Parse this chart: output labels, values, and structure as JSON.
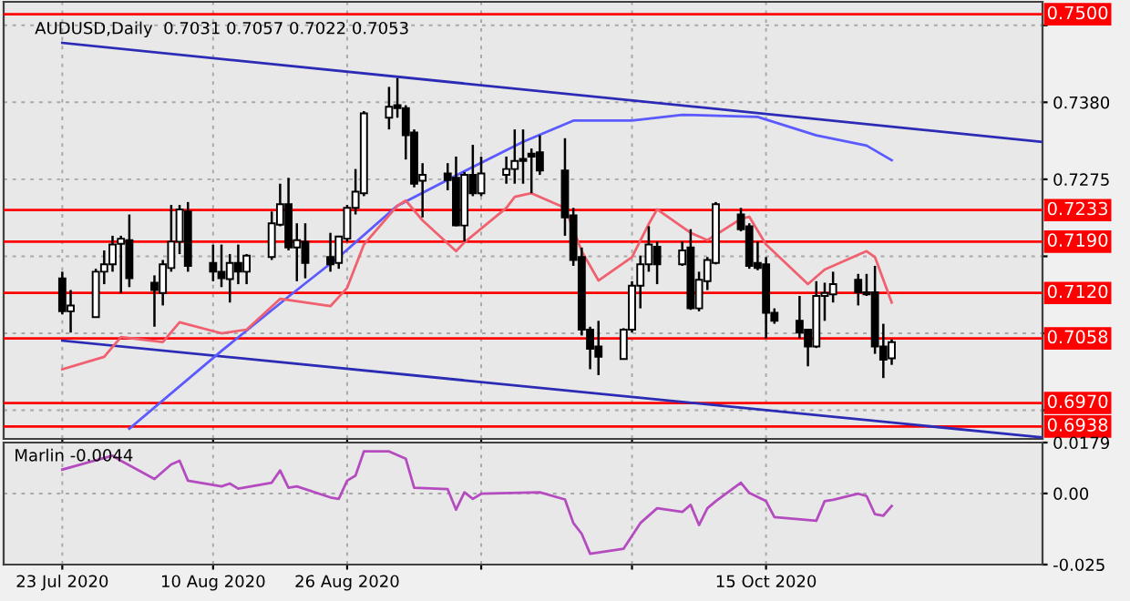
{
  "chart_data": [
    {
      "type": "candlestick",
      "title": "AUDUSD,Daily  0.7031 0.7057 0.7022 0.7053",
      "x": [
        "2020-07-23",
        "2020-07-24",
        "2020-07-27",
        "2020-07-28",
        "2020-07-29",
        "2020-07-30",
        "2020-07-31",
        "2020-08-03",
        "2020-08-04",
        "2020-08-05",
        "2020-08-06",
        "2020-08-07",
        "2020-08-10",
        "2020-08-11",
        "2020-08-12",
        "2020-08-13",
        "2020-08-14",
        "2020-08-17",
        "2020-08-18",
        "2020-08-19",
        "2020-08-20",
        "2020-08-21",
        "2020-08-24",
        "2020-08-25",
        "2020-08-26",
        "2020-08-27",
        "2020-08-28",
        "2020-08-31",
        "2020-09-01",
        "2020-09-02",
        "2020-09-03",
        "2020-09-04",
        "2020-09-07",
        "2020-09-08",
        "2020-09-09",
        "2020-09-10",
        "2020-09-11",
        "2020-09-14",
        "2020-09-15",
        "2020-09-16",
        "2020-09-17",
        "2020-09-18",
        "2020-09-21",
        "2020-09-22",
        "2020-09-23",
        "2020-09-24",
        "2020-09-25",
        "2020-09-28",
        "2020-09-29",
        "2020-09-30",
        "2020-10-01",
        "2020-10-02",
        "2020-10-05",
        "2020-10-06",
        "2020-10-07",
        "2020-10-08",
        "2020-10-09",
        "2020-10-12",
        "2020-10-13",
        "2020-10-14",
        "2020-10-15",
        "2020-10-16",
        "2020-10-19",
        "2020-10-20",
        "2020-10-21",
        "2020-10-22",
        "2020-10-23",
        "2020-10-26",
        "2020-10-27",
        "2020-10-28",
        "2020-10-29",
        "2020-10-30"
      ],
      "ohlc": [
        [
          0.714,
          0.7149,
          0.7091,
          0.7095
        ],
        [
          0.7095,
          0.7124,
          0.7066,
          0.7103
        ],
        [
          0.7087,
          0.7153,
          0.7087,
          0.7149
        ],
        [
          0.7149,
          0.7178,
          0.7132,
          0.7159
        ],
        [
          0.7159,
          0.7198,
          0.7149,
          0.7186
        ],
        [
          0.7187,
          0.7198,
          0.712,
          0.7194
        ],
        [
          0.7192,
          0.7227,
          0.7128,
          0.714
        ],
        [
          0.7134,
          0.7144,
          0.7074,
          0.7124
        ],
        [
          0.712,
          0.7165,
          0.7103,
          0.7159
        ],
        [
          0.7154,
          0.724,
          0.7149,
          0.719
        ],
        [
          0.719,
          0.724,
          0.7173,
          0.7234
        ],
        [
          0.7231,
          0.7244,
          0.7149,
          0.7157
        ],
        [
          0.7161,
          0.7186,
          0.7136,
          0.7149
        ],
        [
          0.7149,
          0.7186,
          0.7128,
          0.714
        ],
        [
          0.7139,
          0.7173,
          0.7107,
          0.7161
        ],
        [
          0.7161,
          0.7186,
          0.7132,
          0.7149
        ],
        [
          0.7149,
          0.7173,
          0.7132,
          0.7171
        ],
        [
          0.7169,
          0.7231,
          0.7165,
          0.7215
        ],
        [
          0.7213,
          0.7269,
          0.7211,
          0.7241
        ],
        [
          0.7241,
          0.7277,
          0.7178,
          0.7182
        ],
        [
          0.7182,
          0.7215,
          0.7136,
          0.7192
        ],
        [
          0.719,
          0.7215,
          0.714,
          0.7161
        ],
        [
          0.7169,
          0.7202,
          0.7149,
          0.7159
        ],
        [
          0.7161,
          0.7198,
          0.7153,
          0.7197
        ],
        [
          0.7194,
          0.724,
          0.719,
          0.7236
        ],
        [
          0.7236,
          0.7289,
          0.7227,
          0.7258
        ],
        [
          0.7256,
          0.7368,
          0.7252,
          0.7365
        ],
        [
          0.7359,
          0.7401,
          0.7343,
          0.7374
        ],
        [
          0.7376,
          0.7413,
          0.7359,
          0.7372
        ],
        [
          0.7372,
          0.7376,
          0.7302,
          0.7335
        ],
        [
          0.7339,
          0.7343,
          0.7264,
          0.7269
        ],
        [
          0.7273,
          0.7297,
          0.7223,
          0.7281
        ],
        [
          0.7283,
          0.7297,
          0.726,
          0.7274
        ],
        [
          0.7277,
          0.7306,
          0.7211,
          0.7212
        ],
        [
          0.7212,
          0.7285,
          0.719,
          0.7281
        ],
        [
          0.7281,
          0.7322,
          0.7252,
          0.7256
        ],
        [
          0.7256,
          0.7306,
          0.7252,
          0.7283
        ],
        [
          0.7281,
          0.7306,
          0.7269,
          0.7289
        ],
        [
          0.7289,
          0.7343,
          0.7269,
          0.73
        ],
        [
          0.7303,
          0.7343,
          0.7269,
          0.73
        ],
        [
          0.731,
          0.7317,
          0.7256,
          0.7306
        ],
        [
          0.7312,
          0.7335,
          0.7281,
          0.7287
        ],
        [
          0.7287,
          0.7331,
          0.7198,
          0.7223
        ],
        [
          0.7226,
          0.7236,
          0.7157,
          0.7165
        ],
        [
          0.7169,
          0.7182,
          0.7062,
          0.707
        ],
        [
          0.707,
          0.7074,
          0.7016,
          0.7044
        ],
        [
          0.7047,
          0.7082,
          0.7008,
          0.7033
        ],
        [
          0.703,
          0.7072,
          0.7029,
          0.707
        ],
        [
          0.707,
          0.7136,
          0.7066,
          0.713
        ],
        [
          0.713,
          0.7171,
          0.7099,
          0.7159
        ],
        [
          0.7159,
          0.7211,
          0.7149,
          0.7186
        ],
        [
          0.7183,
          0.719,
          0.7132,
          0.7159
        ],
        [
          0.7159,
          0.719,
          0.7157,
          0.7178
        ],
        [
          0.7182,
          0.7207,
          0.7097,
          0.7099
        ],
        [
          0.7099,
          0.7149,
          0.7095,
          0.7138
        ],
        [
          0.7136,
          0.7169,
          0.7124,
          0.7165
        ],
        [
          0.7161,
          0.7244,
          0.7159,
          0.7241
        ],
        [
          0.7227,
          0.7236,
          0.7204,
          0.7207
        ],
        [
          0.7211,
          0.7215,
          0.7153,
          0.7157
        ],
        [
          0.7161,
          0.719,
          0.7151,
          0.7154
        ],
        [
          0.7159,
          0.7169,
          0.7058,
          0.7093
        ],
        [
          0.7093,
          0.7099,
          0.7078,
          0.7082
        ],
        [
          0.7082,
          0.7116,
          0.7058,
          0.7066
        ],
        [
          0.707,
          0.707,
          0.702,
          0.7047
        ],
        [
          0.7047,
          0.7136,
          0.7045,
          0.7116
        ],
        [
          0.7116,
          0.7134,
          0.7082,
          0.712
        ],
        [
          0.7118,
          0.7149,
          0.7107,
          0.7132
        ],
        [
          0.7138,
          0.7146,
          0.7103,
          0.7121
        ],
        [
          0.7121,
          0.7146,
          0.7116,
          0.7118
        ],
        [
          0.7121,
          0.7157,
          0.7037,
          0.7047
        ],
        [
          0.7047,
          0.7078,
          0.7004,
          0.7029
        ],
        [
          0.7031,
          0.7057,
          0.7022,
          0.7053
        ]
      ],
      "series": [
        {
          "type": "line",
          "color": "#2b2bb5",
          "x": [
            "2020-07-23",
            "2020-11-17"
          ],
          "values": [
            0.7461,
            0.7326
          ]
        },
        {
          "type": "line",
          "color": "#2b2bb5",
          "x": [
            "2020-07-23",
            "2020-11-17"
          ],
          "values": [
            0.7055,
            0.6923
          ]
        },
        {
          "type": "line",
          "color": "#5a5aff",
          "x": [
            "2020-07-31",
            "2020-08-11",
            "2020-08-19",
            "2020-08-25",
            "2020-09-01",
            "2020-09-09",
            "2020-09-16",
            "2020-09-22",
            "2020-09-29",
            "2020-10-05",
            "2020-10-14",
            "2020-10-21",
            "2020-10-27",
            "2020-10-30"
          ],
          "values": [
            0.6935,
            0.7041,
            0.7115,
            0.7169,
            0.7239,
            0.7286,
            0.7326,
            0.7355,
            0.7355,
            0.7363,
            0.736,
            0.7335,
            0.7321,
            0.7301
          ]
        },
        {
          "type": "line",
          "color": "#f0606e",
          "x": [
            "2020-07-23",
            "2020-07-28",
            "2020-07-30",
            "2020-08-04",
            "2020-08-06",
            "2020-08-11",
            "2020-08-14",
            "2020-08-18",
            "2020-08-24",
            "2020-08-26",
            "2020-08-28",
            "2020-09-01",
            "2020-09-02",
            "2020-09-04",
            "2020-09-08",
            "2020-09-09",
            "2020-09-14",
            "2020-09-15",
            "2020-09-17",
            "2020-09-21",
            "2020-09-23",
            "2020-09-25",
            "2020-09-29",
            "2020-10-01",
            "2020-10-02",
            "2020-10-06",
            "2020-10-08",
            "2020-10-12",
            "2020-10-13",
            "2020-10-15",
            "2020-10-20",
            "2020-10-22",
            "2020-10-27",
            "2020-10-28",
            "2020-10-30"
          ],
          "values": [
            0.7016,
            0.7033,
            0.706,
            0.7053,
            0.708,
            0.7065,
            0.707,
            0.7112,
            0.7102,
            0.7127,
            0.7186,
            0.7239,
            0.7246,
            0.7219,
            0.7177,
            0.7189,
            0.7236,
            0.7251,
            0.7256,
            0.7236,
            0.7177,
            0.7137,
            0.7169,
            0.7214,
            0.7234,
            0.7202,
            0.7192,
            0.7221,
            0.7224,
            0.7186,
            0.7132,
            0.7152,
            0.7177,
            0.7169,
            0.7107
          ]
        }
      ],
      "ylim": [
        0.6921,
        0.7517
      ],
      "yticks": [
        {
          "value": 0.7485,
          "label": null
        },
        {
          "value": 0.738,
          "label": "0.7380"
        },
        {
          "value": 0.7275,
          "label": "0.7275"
        },
        {
          "value": 0.717,
          "label": null
        },
        {
          "value": 0.7065,
          "label": null
        },
        {
          "value": 0.696,
          "label": null
        }
      ],
      "xlim": [
        "2020-07-16",
        "2020-11-17"
      ],
      "xticks": [
        {
          "value": "2020-07-23",
          "label": null
        },
        {
          "value": "2020-08-10",
          "label": null
        },
        {
          "value": "2020-08-26",
          "label": null
        },
        {
          "value": "2020-09-11",
          "label": null
        },
        {
          "value": "2020-09-29",
          "label": null
        },
        {
          "value": "2020-10-15",
          "label": null
        }
      ],
      "ref_lines": [
        {
          "axis": "y",
          "value": 0.75,
          "label": "0.7500",
          "color": "#ff0000"
        },
        {
          "axis": "y",
          "value": 0.7233,
          "label": "0.7233",
          "color": "#ff0000"
        },
        {
          "axis": "y",
          "value": 0.719,
          "label": "0.7190",
          "color": "#ff0000"
        },
        {
          "axis": "y",
          "value": 0.712,
          "label": "0.7120",
          "color": "#ff0000"
        },
        {
          "axis": "y",
          "value": 0.7058,
          "label": "0.7058",
          "color": "#ff0000"
        },
        {
          "axis": "y",
          "value": 0.697,
          "label": "0.6970",
          "color": "#ff0000"
        },
        {
          "axis": "y",
          "value": 0.6938,
          "label": "0.6938",
          "color": "#ff0000"
        }
      ],
      "grid": true,
      "tick_labels": "y"
    },
    {
      "type": "line",
      "annotations": [
        "Marlin -0.0044"
      ],
      "series": [
        {
          "color": "#b44cc0",
          "x": [
            "2020-07-23",
            "2020-07-29",
            "2020-07-30",
            "2020-08-03",
            "2020-08-05",
            "2020-08-06",
            "2020-08-07",
            "2020-08-11",
            "2020-08-12",
            "2020-08-13",
            "2020-08-17",
            "2020-08-18",
            "2020-08-19",
            "2020-08-20",
            "2020-08-24",
            "2020-08-25",
            "2020-08-26",
            "2020-08-27",
            "2020-08-28",
            "2020-08-31",
            "2020-09-02",
            "2020-09-03",
            "2020-09-07",
            "2020-09-08",
            "2020-09-09",
            "2020-09-10",
            "2020-09-11",
            "2020-09-18",
            "2020-09-21",
            "2020-09-22",
            "2020-09-23",
            "2020-09-24",
            "2020-09-28",
            "2020-09-30",
            "2020-10-02",
            "2020-10-05",
            "2020-10-06",
            "2020-10-07",
            "2020-10-08",
            "2020-10-09",
            "2020-10-12",
            "2020-10-13",
            "2020-10-15",
            "2020-10-16",
            "2020-10-21",
            "2020-10-22",
            "2020-10-23",
            "2020-10-26",
            "2020-10-27",
            "2020-10-28",
            "2020-10-29",
            "2020-10-30"
          ],
          "values": [
            0.0084,
            0.0133,
            0.0115,
            0.0051,
            0.0102,
            0.0115,
            0.0045,
            0.0025,
            0.0035,
            0.0017,
            0.0038,
            0.0081,
            0.002,
            0.0025,
            -0.0014,
            -0.0019,
            0.0045,
            0.0063,
            0.0148,
            0.0148,
            0.0122,
            0.002,
            0.0015,
            -0.0057,
            0.0004,
            -0.0019,
            -0.0001,
            0.0004,
            -0.0021,
            -0.0104,
            -0.0142,
            -0.0212,
            -0.0194,
            -0.0104,
            -0.0052,
            -0.0065,
            -0.004,
            -0.0111,
            -0.0052,
            -0.0027,
            0.0038,
            0.0002,
            -0.0027,
            -0.0083,
            -0.0096,
            -0.0027,
            -0.0022,
            -0.0001,
            -0.0009,
            -0.0073,
            -0.0078,
            -0.0044
          ]
        }
      ],
      "ylim": [
        -0.025,
        0.0179
      ],
      "yticks": [
        0.0179,
        {
          "value": 0,
          "label": "0.00"
        },
        {
          "value": -0.025,
          "label": "-0.025"
        }
      ],
      "xlim": [
        "2020-07-16",
        "2020-11-17"
      ],
      "xticks": [
        {
          "value": "2020-07-23",
          "label": "23 Jul 2020"
        },
        {
          "value": "2020-08-10",
          "label": "10 Aug 2020"
        },
        {
          "value": "2020-08-26",
          "label": "26 Aug 2020"
        },
        {
          "value": "2020-09-11",
          "label": null
        },
        {
          "value": "2020-09-29",
          "label": null
        },
        {
          "value": "2020-10-15",
          "label": "15 Oct 2020"
        }
      ],
      "grid": true
    }
  ]
}
